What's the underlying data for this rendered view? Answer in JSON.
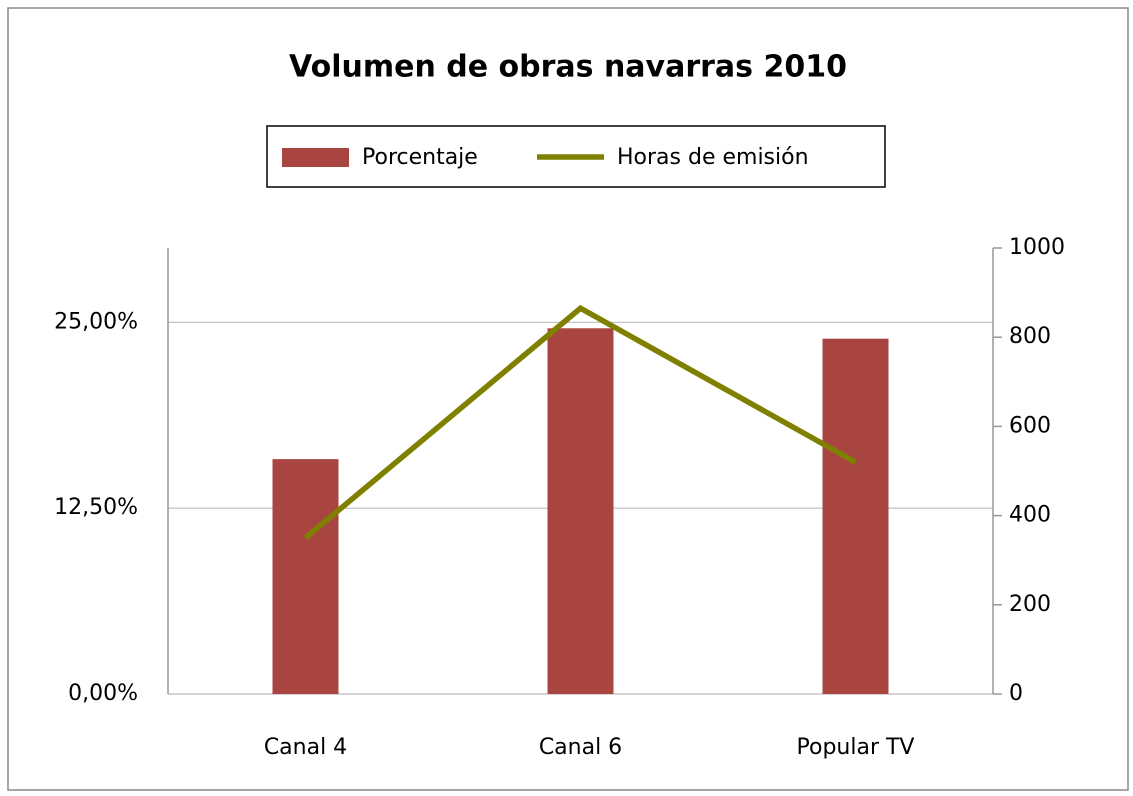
{
  "chart_data": {
    "type": "bar_line",
    "title": "Volumen de obras navarras 2010",
    "categories": [
      "Canal 4",
      "Canal 6",
      "Popular TV"
    ],
    "series": [
      {
        "name": "Porcentaje",
        "type": "bar",
        "color": "#a94541",
        "values": [
          15.8,
          24.6,
          23.9
        ]
      },
      {
        "name": "Horas de emisión",
        "type": "line",
        "axis": "y2",
        "color": "#808000",
        "values": [
          350,
          865,
          520
        ]
      }
    ],
    "ylim": [
      0,
      30
    ],
    "yticks": [
      {
        "value": 0,
        "label": "0,00%"
      },
      {
        "value": 12.5,
        "label": "12,50%"
      },
      {
        "value": 25,
        "label": "25,00%"
      }
    ],
    "y2lim": [
      0,
      1000
    ],
    "y2ticks": [
      0,
      200,
      400,
      600,
      800,
      1000
    ],
    "grid": true,
    "legend": "top"
  }
}
